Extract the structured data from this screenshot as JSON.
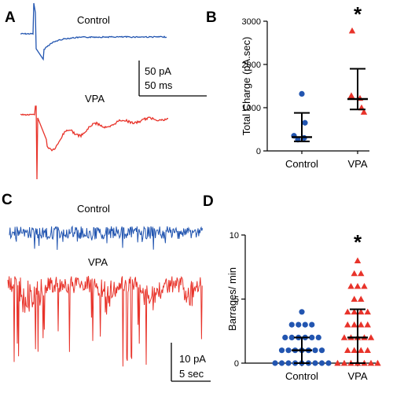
{
  "panels": {
    "a": "A",
    "b": "B",
    "c": "C",
    "d": "D"
  },
  "panel_a": {
    "control_label": "Control",
    "vpa_label": "VPA",
    "scale_y": "50 pA",
    "scale_x": "50 ms"
  },
  "panel_c": {
    "control_label": "Control",
    "vpa_label": "VPA",
    "scale_y": "10 pA",
    "scale_x": "5 sec"
  },
  "colors": {
    "control": "#2255b0",
    "vpa": "#e8332a",
    "summary": "#000000"
  },
  "chart_data": [
    {
      "id": "B",
      "type": "scatter",
      "ylabel": "Total Charge (pA.sec)",
      "xlabel": "",
      "categories": [
        "Control",
        "VPA"
      ],
      "ylim": [
        0,
        3000
      ],
      "yticks": [
        0,
        1000,
        2000,
        3000
      ],
      "series": [
        {
          "name": "Control",
          "marker": "circle",
          "color": "#2255b0",
          "values": [
            260,
            300,
            350,
            650,
            1320
          ]
        },
        {
          "name": "VPA",
          "marker": "triangle",
          "color": "#e8332a",
          "values": [
            900,
            1000,
            1220,
            1280,
            2780
          ]
        }
      ],
      "summary": [
        {
          "center": 320,
          "low": 220,
          "high": 880
        },
        {
          "center": 1200,
          "low": 960,
          "high": 1900
        }
      ],
      "significance": {
        "category": "VPA",
        "text": "*"
      }
    },
    {
      "id": "D",
      "type": "scatter",
      "ylabel": "Barrages/ min",
      "xlabel": "",
      "categories": [
        "Control",
        "VPA"
      ],
      "ylim": [
        0,
        10
      ],
      "yticks": [
        0,
        5,
        10
      ],
      "series": [
        {
          "name": "Control",
          "marker": "circle",
          "color": "#2255b0",
          "values": [
            0,
            0,
            0,
            0,
            0,
            0,
            0,
            0,
            0,
            1,
            1,
            1,
            1,
            1,
            1,
            1,
            2,
            2,
            2,
            2,
            2,
            2,
            3,
            3,
            3,
            3,
            4
          ]
        },
        {
          "name": "VPA",
          "marker": "triangle",
          "color": "#e8332a",
          "values": [
            0,
            0,
            0,
            0,
            0,
            0,
            0,
            1,
            1,
            1,
            1,
            2,
            2,
            2,
            2,
            2,
            3,
            3,
            3,
            3,
            4,
            4,
            4,
            4,
            5,
            5,
            6,
            6,
            6,
            7,
            7,
            8
          ]
        }
      ],
      "summary": [
        {
          "center": 1,
          "low": 0,
          "high": 2
        },
        {
          "center": 2,
          "low": 0,
          "high": 4.2
        }
      ],
      "significance": {
        "category": "VPA",
        "text": "*"
      }
    }
  ]
}
